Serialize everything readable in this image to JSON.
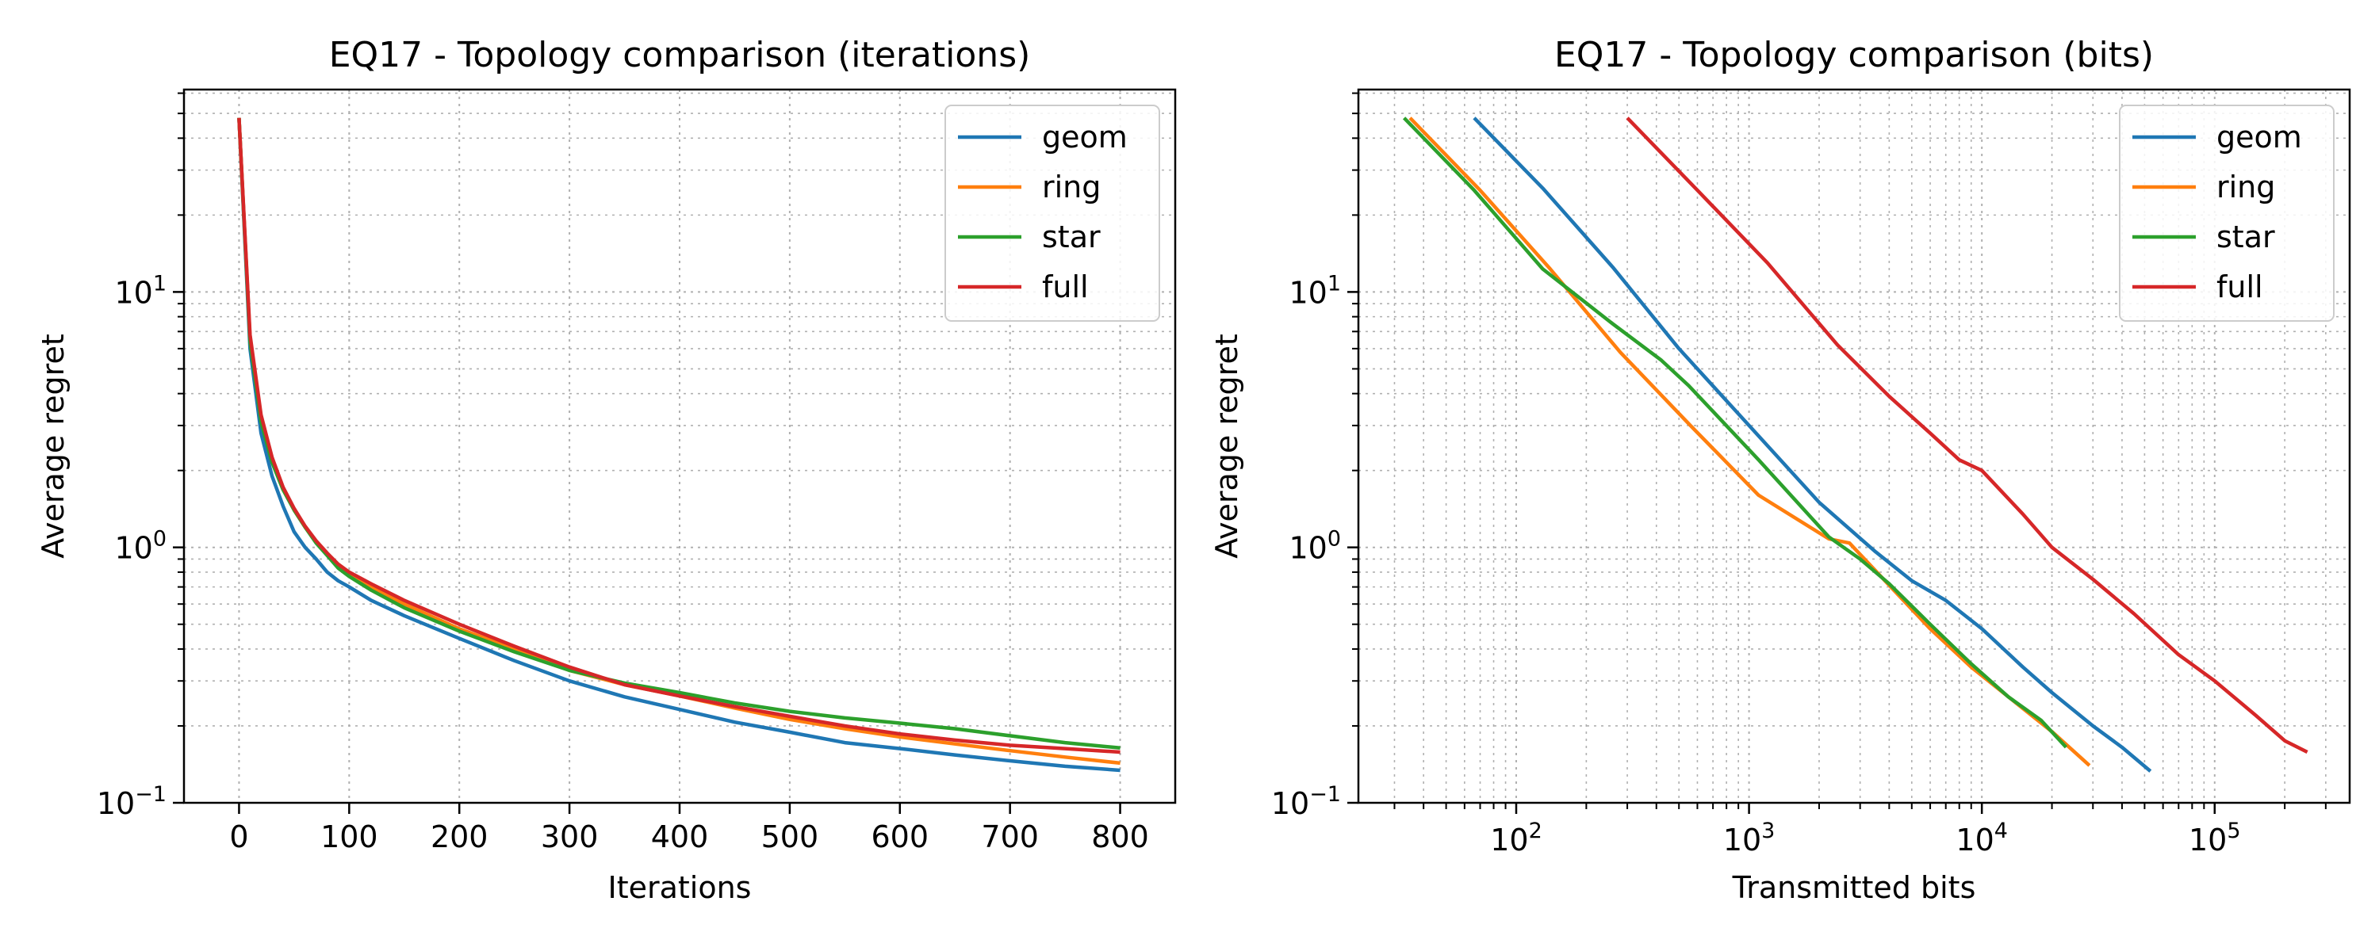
{
  "chart_data": [
    {
      "type": "line",
      "title": "EQ17 - Topology comparison (iterations)",
      "xlabel": "Iterations",
      "ylabel": "Average regret",
      "xscale": "linear",
      "yscale": "log",
      "xlim": [
        -50,
        850
      ],
      "ylim": [
        0.1,
        62
      ],
      "xticks": [
        0,
        100,
        200,
        300,
        400,
        500,
        600,
        700,
        800
      ],
      "yticks": [
        {
          "value": 0.1,
          "base": "10",
          "exp": "−1"
        },
        {
          "value": 1,
          "base": "10",
          "exp": "0"
        },
        {
          "value": 10,
          "base": "10",
          "exp": "1"
        }
      ],
      "grid": true,
      "legend": "top-right",
      "series": [
        {
          "name": "geom",
          "color": "#1f77b4",
          "x": [
            0,
            10,
            20,
            30,
            40,
            50,
            60,
            70,
            80,
            90,
            100,
            120,
            150,
            200,
            250,
            300,
            350,
            400,
            450,
            500,
            550,
            600,
            650,
            700,
            750,
            800
          ],
          "y": [
            48,
            6,
            2.8,
            1.9,
            1.45,
            1.15,
            1.0,
            0.9,
            0.8,
            0.74,
            0.7,
            0.62,
            0.54,
            0.44,
            0.36,
            0.3,
            0.26,
            0.232,
            0.207,
            0.189,
            0.172,
            0.163,
            0.154,
            0.146,
            0.139,
            0.134
          ]
        },
        {
          "name": "ring",
          "color": "#ff7f0e",
          "x": [
            0,
            10,
            20,
            30,
            40,
            50,
            60,
            70,
            80,
            90,
            100,
            120,
            150,
            200,
            250,
            300,
            350,
            400,
            450,
            500,
            550,
            600,
            650,
            700,
            750,
            800
          ],
          "y": [
            48,
            6.6,
            3.2,
            2.2,
            1.7,
            1.4,
            1.2,
            1.05,
            0.94,
            0.85,
            0.79,
            0.7,
            0.6,
            0.48,
            0.4,
            0.33,
            0.29,
            0.262,
            0.235,
            0.212,
            0.195,
            0.181,
            0.17,
            0.16,
            0.151,
            0.143
          ]
        },
        {
          "name": "star",
          "color": "#2ca02c",
          "x": [
            0,
            10,
            20,
            30,
            40,
            50,
            60,
            70,
            80,
            90,
            100,
            120,
            150,
            200,
            250,
            300,
            350,
            400,
            450,
            500,
            550,
            600,
            650,
            700,
            750,
            800
          ],
          "y": [
            48,
            6.4,
            3.1,
            2.15,
            1.68,
            1.4,
            1.2,
            1.04,
            0.93,
            0.83,
            0.77,
            0.68,
            0.58,
            0.47,
            0.39,
            0.33,
            0.294,
            0.27,
            0.246,
            0.228,
            0.215,
            0.205,
            0.195,
            0.183,
            0.172,
            0.164
          ]
        },
        {
          "name": "full",
          "color": "#d62728",
          "x": [
            0,
            10,
            20,
            30,
            40,
            50,
            60,
            70,
            80,
            90,
            100,
            120,
            150,
            200,
            250,
            300,
            350,
            400,
            450,
            500,
            550,
            600,
            650,
            700,
            750,
            800
          ],
          "y": [
            48,
            6.8,
            3.3,
            2.25,
            1.72,
            1.42,
            1.21,
            1.06,
            0.95,
            0.86,
            0.8,
            0.72,
            0.62,
            0.5,
            0.41,
            0.34,
            0.29,
            0.262,
            0.238,
            0.218,
            0.2,
            0.186,
            0.176,
            0.168,
            0.163,
            0.158
          ]
        }
      ]
    },
    {
      "type": "line",
      "title": "EQ17 - Topology comparison (bits)",
      "xlabel": "Transmitted bits",
      "ylabel": "Average regret",
      "xscale": "log",
      "yscale": "log",
      "xlim": [
        21,
        380000
      ],
      "ylim": [
        0.1,
        62
      ],
      "xticks": [
        {
          "value": 100,
          "base": "10",
          "exp": "2"
        },
        {
          "value": 1000,
          "base": "10",
          "exp": "3"
        },
        {
          "value": 10000,
          "base": "10",
          "exp": "4"
        },
        {
          "value": 100000,
          "base": "10",
          "exp": "5"
        }
      ],
      "yticks": [
        {
          "value": 0.1,
          "base": "10",
          "exp": "−1"
        },
        {
          "value": 1,
          "base": "10",
          "exp": "0"
        },
        {
          "value": 10,
          "base": "10",
          "exp": "1"
        }
      ],
      "grid": true,
      "legend": "top-right",
      "series": [
        {
          "name": "geom",
          "color": "#1f77b4",
          "x": [
            66,
            130,
            260,
            500,
            1000,
            2000,
            3500,
            5000,
            7000,
            10000,
            15000,
            20000,
            30000,
            40000,
            53000
          ],
          "y": [
            48,
            25.5,
            12.5,
            6.0,
            3.0,
            1.5,
            0.96,
            0.74,
            0.62,
            0.48,
            0.34,
            0.27,
            0.2,
            0.165,
            0.133
          ]
        },
        {
          "name": "ring",
          "color": "#ff7f0e",
          "x": [
            35,
            70,
            140,
            280,
            560,
            1100,
            2200,
            2700,
            4000,
            6000,
            9000,
            13000,
            20000,
            29000
          ],
          "y": [
            48,
            25,
            12.3,
            5.8,
            3.0,
            1.6,
            1.08,
            1.04,
            0.71,
            0.48,
            0.34,
            0.26,
            0.19,
            0.14
          ]
        },
        {
          "name": "star",
          "color": "#2ca02c",
          "x": [
            33,
            66,
            130,
            260,
            420,
            550,
            1100,
            2200,
            3000,
            4000,
            6000,
            9000,
            13000,
            18000,
            23000
          ],
          "y": [
            48,
            25,
            12.3,
            7.5,
            5.4,
            4.3,
            2.2,
            1.1,
            0.9,
            0.72,
            0.5,
            0.35,
            0.26,
            0.21,
            0.165
          ]
        },
        {
          "name": "full",
          "color": "#d62728",
          "x": [
            300,
            600,
            1200,
            2400,
            4000,
            6000,
            8000,
            10000,
            15000,
            20000,
            30000,
            45000,
            70000,
            100000,
            150000,
            200000,
            250000
          ],
          "y": [
            48,
            25,
            13,
            6.2,
            3.9,
            2.8,
            2.2,
            2.0,
            1.35,
            1.0,
            0.75,
            0.55,
            0.38,
            0.3,
            0.22,
            0.175,
            0.158
          ]
        }
      ]
    }
  ]
}
